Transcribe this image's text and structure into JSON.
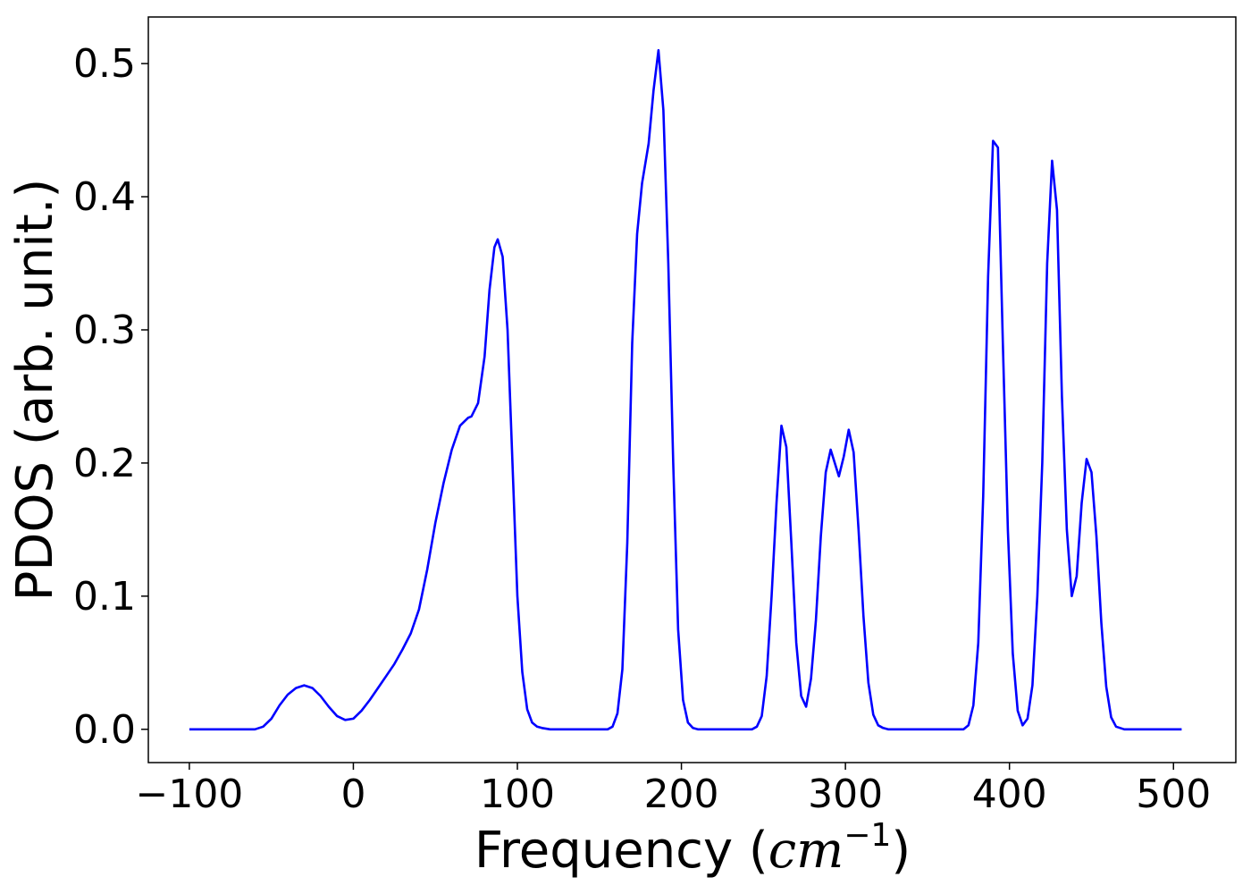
{
  "chart_data": {
    "type": "line",
    "title": "",
    "xlabel": {
      "prefix": "Frequency (",
      "math": "cm",
      "sup": "−1",
      "suffix": ")"
    },
    "ylabel": "PDOS (arb. unit.)",
    "xlim": [
      -125,
      538
    ],
    "ylim": [
      -0.025,
      0.535
    ],
    "xticks": [
      -100,
      0,
      100,
      200,
      300,
      400,
      500
    ],
    "xtick_labels": [
      "−100",
      "0",
      "100",
      "200",
      "300",
      "400",
      "500"
    ],
    "yticks": [
      0.0,
      0.1,
      0.2,
      0.3,
      0.4,
      0.5
    ],
    "ytick_labels": [
      "0.0",
      "0.1",
      "0.2",
      "0.3",
      "0.4",
      "0.5"
    ],
    "grid": false,
    "series": [
      {
        "color": "#0000ff",
        "x": [
          -100,
          -60,
          -55,
          -50,
          -45,
          -40,
          -35,
          -30,
          -25,
          -20,
          -15,
          -10,
          -5,
          0,
          5,
          10,
          15,
          20,
          25,
          30,
          35,
          40,
          45,
          50,
          55,
          60,
          65,
          70,
          72,
          76,
          80,
          83,
          86,
          88,
          91,
          94,
          97,
          100,
          103,
          106,
          109,
          112,
          115,
          120,
          155,
          158,
          161,
          164,
          167,
          170,
          173,
          176,
          180,
          183,
          186,
          189,
          192,
          195,
          198,
          201,
          204,
          207,
          210,
          215,
          243,
          246,
          249,
          252,
          255,
          258,
          261,
          264,
          267,
          270,
          273,
          276,
          279,
          282,
          285,
          288,
          291,
          296,
          299,
          302,
          305,
          308,
          311,
          314,
          317,
          320,
          323,
          326,
          372,
          375,
          378,
          381,
          384,
          387,
          390,
          393,
          396,
          399,
          402,
          405,
          408,
          411,
          414,
          417,
          420,
          423,
          426,
          429,
          432,
          435,
          438,
          441,
          444,
          447,
          450,
          453,
          456,
          459,
          462,
          465,
          470,
          505
        ],
        "y": [
          0.0,
          0.0,
          0.002,
          0.008,
          0.018,
          0.026,
          0.031,
          0.033,
          0.031,
          0.025,
          0.017,
          0.01,
          0.007,
          0.008,
          0.014,
          0.022,
          0.031,
          0.04,
          0.049,
          0.06,
          0.072,
          0.09,
          0.12,
          0.155,
          0.185,
          0.21,
          0.228,
          0.234,
          0.235,
          0.245,
          0.28,
          0.33,
          0.362,
          0.368,
          0.355,
          0.3,
          0.2,
          0.1,
          0.043,
          0.015,
          0.005,
          0.002,
          0.001,
          0.0,
          0.0,
          0.002,
          0.012,
          0.045,
          0.14,
          0.29,
          0.372,
          0.41,
          0.44,
          0.48,
          0.51,
          0.465,
          0.35,
          0.2,
          0.075,
          0.022,
          0.005,
          0.001,
          0.0,
          0.0,
          0.0,
          0.002,
          0.01,
          0.04,
          0.1,
          0.17,
          0.228,
          0.212,
          0.14,
          0.065,
          0.025,
          0.017,
          0.038,
          0.082,
          0.145,
          0.193,
          0.21,
          0.19,
          0.205,
          0.225,
          0.208,
          0.15,
          0.085,
          0.035,
          0.011,
          0.003,
          0.001,
          0.0,
          0.0,
          0.003,
          0.018,
          0.065,
          0.175,
          0.34,
          0.442,
          0.437,
          0.29,
          0.15,
          0.057,
          0.014,
          0.003,
          0.008,
          0.033,
          0.1,
          0.2,
          0.35,
          0.427,
          0.39,
          0.25,
          0.15,
          0.1,
          0.115,
          0.17,
          0.203,
          0.193,
          0.145,
          0.08,
          0.032,
          0.009,
          0.002,
          0.0,
          0.0
        ]
      }
    ]
  }
}
